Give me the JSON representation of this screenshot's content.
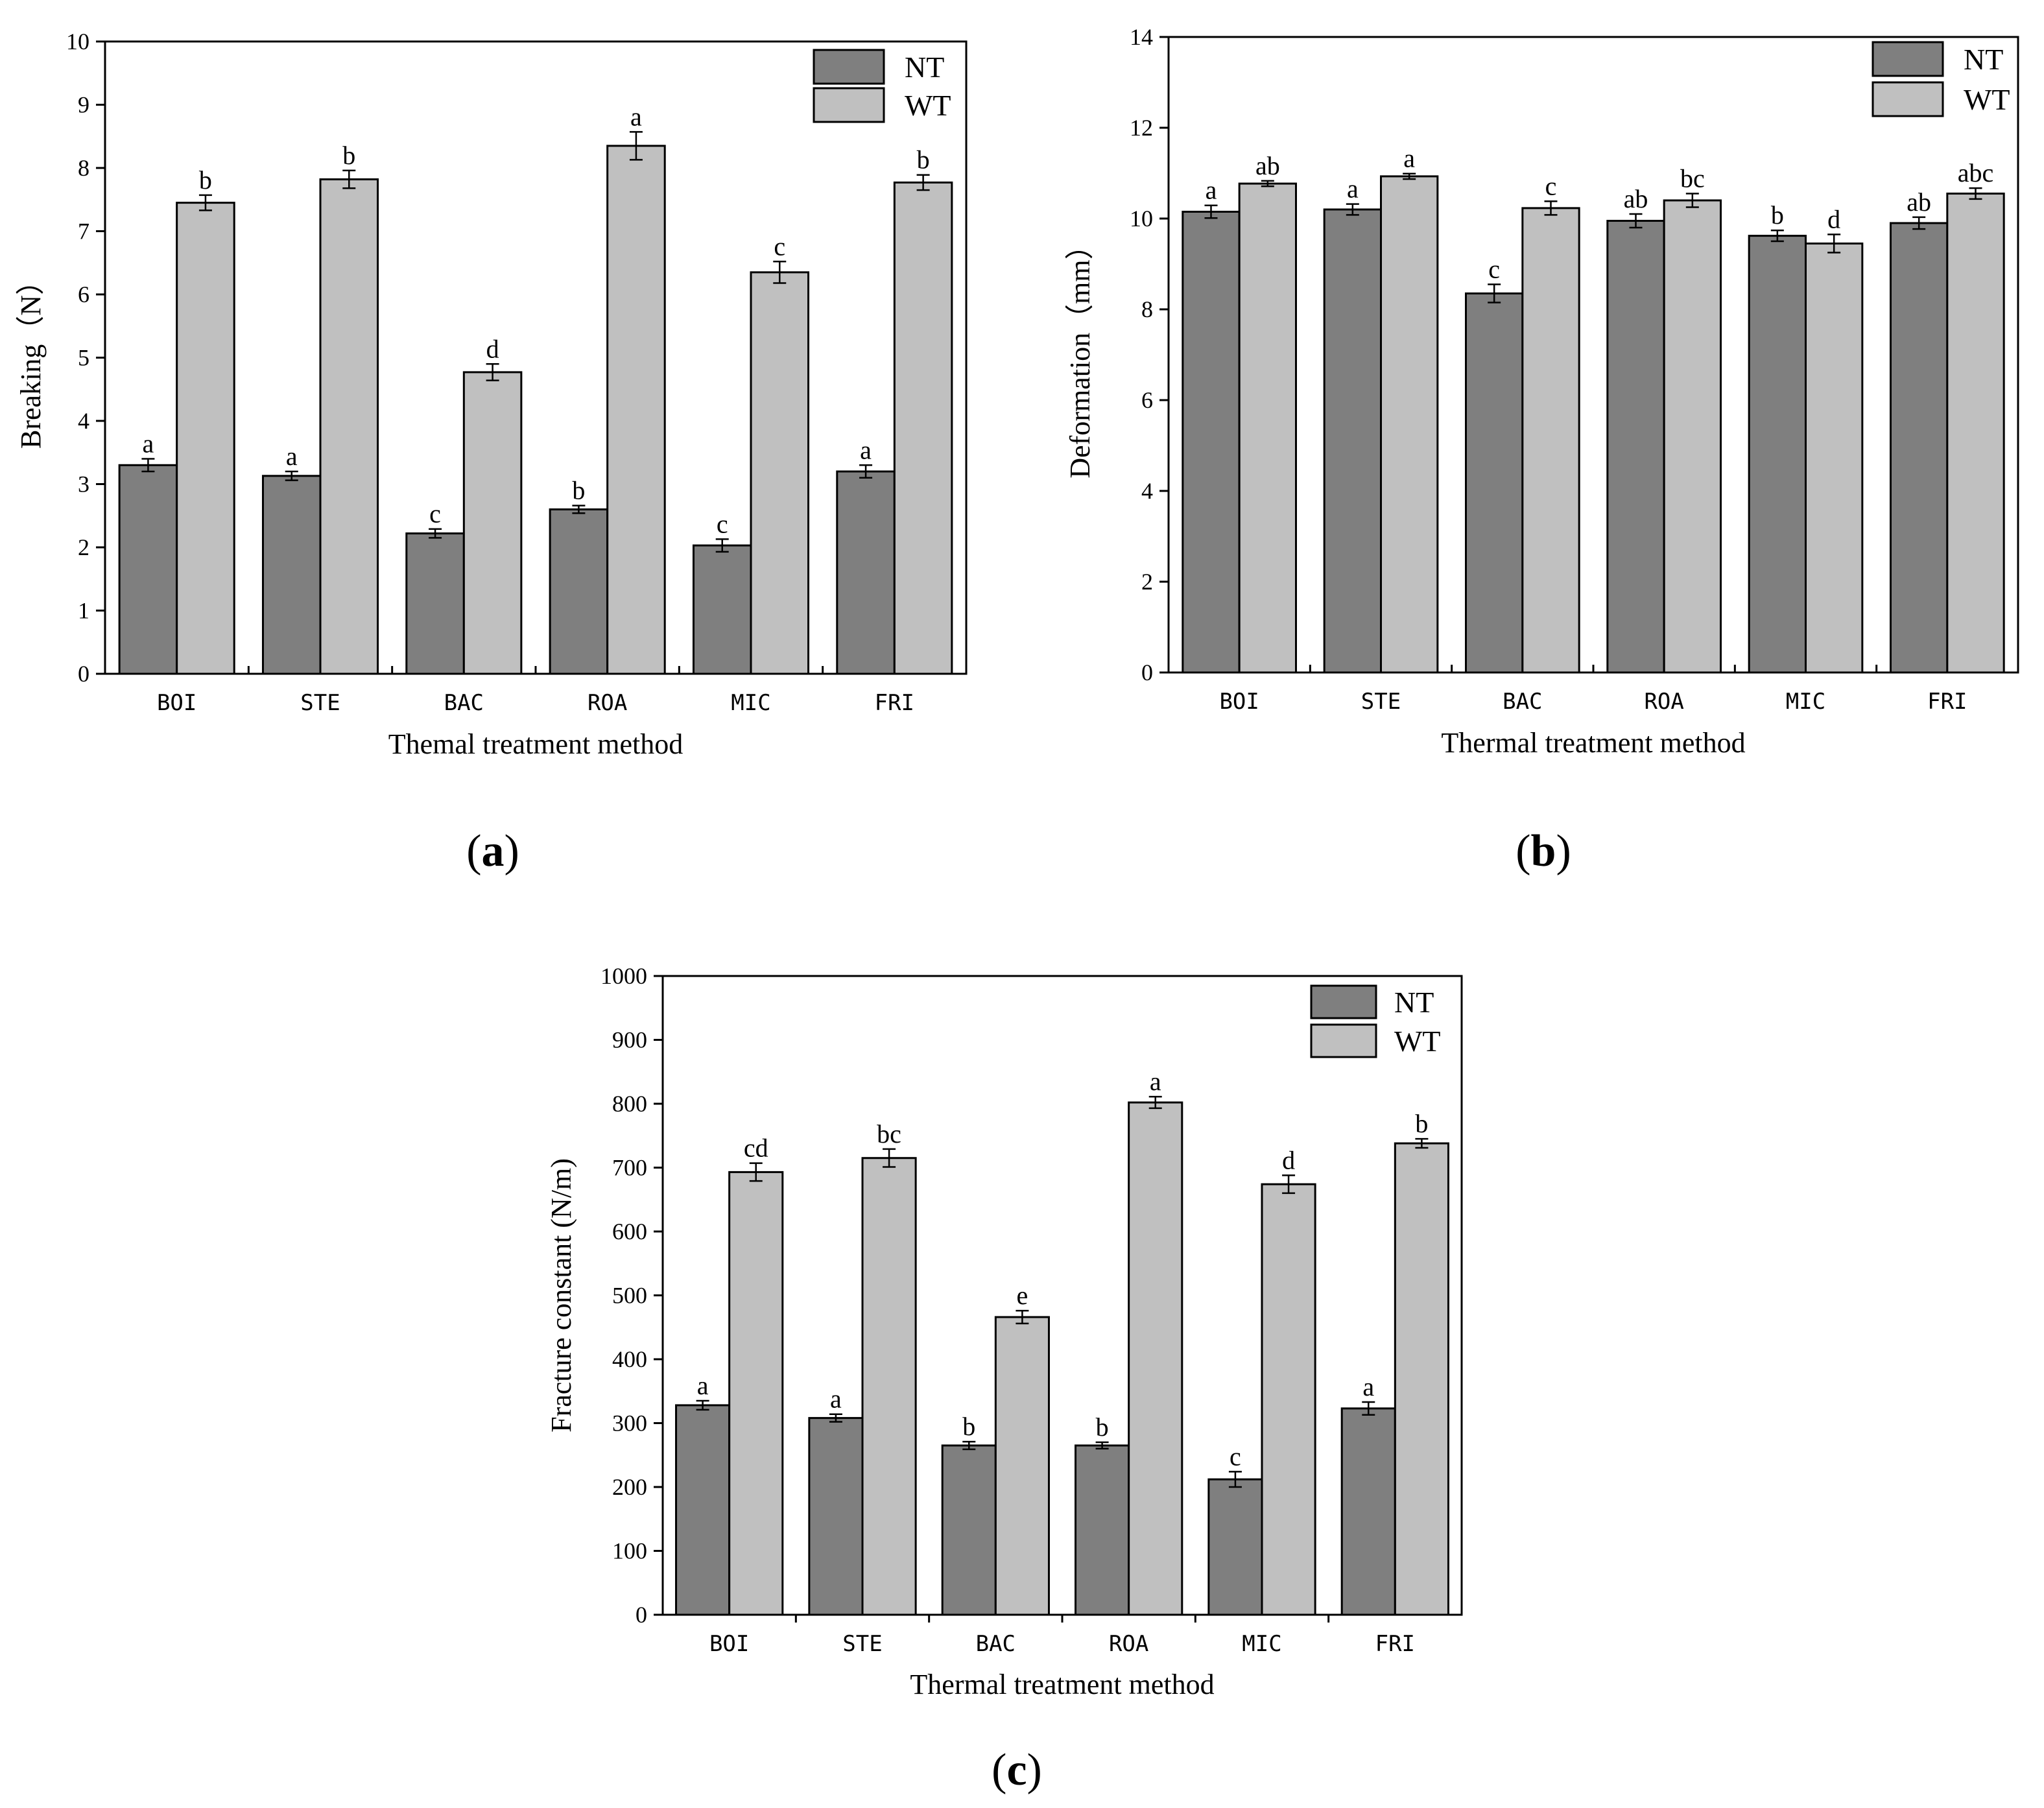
{
  "colors": {
    "NT": "#7f7f7f",
    "WT": "#c0c0c0",
    "axis": "#000000"
  },
  "chart_data": [
    {
      "id": "a",
      "type": "bar",
      "panel_label": "(a)",
      "panel_letter": "a",
      "title": "",
      "xlabel": "Themal treatment method",
      "ylabel": "Breaking（N）",
      "categories": [
        "BOI",
        "STE",
        "BAC",
        "ROA",
        "MIC",
        "FRI"
      ],
      "ylim": [
        0,
        10
      ],
      "yticks": [
        0,
        1,
        2,
        3,
        4,
        5,
        6,
        7,
        8,
        9,
        10
      ],
      "legend": "top-right",
      "series": [
        {
          "name": "NT",
          "values": [
            3.3,
            3.13,
            2.22,
            2.6,
            2.03,
            3.2
          ],
          "errors": [
            0.1,
            0.07,
            0.07,
            0.06,
            0.1,
            0.1
          ],
          "letters": [
            "a",
            "a",
            "c",
            "b",
            "c",
            "a"
          ]
        },
        {
          "name": "WT",
          "values": [
            7.45,
            7.82,
            4.77,
            8.35,
            6.35,
            7.77
          ],
          "errors": [
            0.12,
            0.14,
            0.13,
            0.22,
            0.17,
            0.12
          ],
          "letters": [
            "b",
            "b",
            "d",
            "a",
            "c",
            "b"
          ]
        }
      ]
    },
    {
      "id": "b",
      "type": "bar",
      "panel_label": "(b)",
      "panel_letter": "b",
      "title": "",
      "xlabel": "Thermal treatment method",
      "ylabel": "Deformation（mm）",
      "categories": [
        "BOI",
        "STE",
        "BAC",
        "ROA",
        "MIC",
        "FRI"
      ],
      "ylim": [
        0,
        14
      ],
      "yticks": [
        0,
        2,
        4,
        6,
        8,
        10,
        12,
        14
      ],
      "legend": "top-right",
      "series": [
        {
          "name": "NT",
          "values": [
            10.15,
            10.2,
            8.35,
            9.95,
            9.62,
            9.9
          ],
          "errors": [
            0.14,
            0.12,
            0.2,
            0.15,
            0.12,
            0.13
          ],
          "letters": [
            "a",
            "a",
            "c",
            "ab",
            "b",
            "ab"
          ]
        },
        {
          "name": "WT",
          "values": [
            10.77,
            10.93,
            10.23,
            10.4,
            9.45,
            10.55
          ],
          "errors": [
            0.06,
            0.06,
            0.15,
            0.15,
            0.2,
            0.12
          ],
          "letters": [
            "ab",
            "a",
            "c",
            "bc",
            "d",
            "abc"
          ]
        }
      ]
    },
    {
      "id": "c",
      "type": "bar",
      "panel_label": "(c)",
      "panel_letter": "c",
      "title": "",
      "xlabel": "Thermal treatment method",
      "ylabel": "Fracture constant (N/m)",
      "categories": [
        "BOI",
        "STE",
        "BAC",
        "ROA",
        "MIC",
        "FRI"
      ],
      "ylim": [
        0,
        1000
      ],
      "yticks": [
        0,
        100,
        200,
        300,
        400,
        500,
        600,
        700,
        800,
        900,
        1000
      ],
      "legend": "top-right",
      "series": [
        {
          "name": "NT",
          "values": [
            328,
            308,
            265,
            265,
            212,
            323
          ],
          "errors": [
            7,
            6,
            6,
            5,
            12,
            10
          ],
          "letters": [
            "a",
            "a",
            "b",
            "b",
            "c",
            "a"
          ]
        },
        {
          "name": "WT",
          "values": [
            693,
            715,
            466,
            802,
            674,
            738
          ],
          "errors": [
            14,
            14,
            10,
            9,
            14,
            7
          ],
          "letters": [
            "cd",
            "bc",
            "e",
            "a",
            "d",
            "b"
          ]
        }
      ]
    }
  ]
}
